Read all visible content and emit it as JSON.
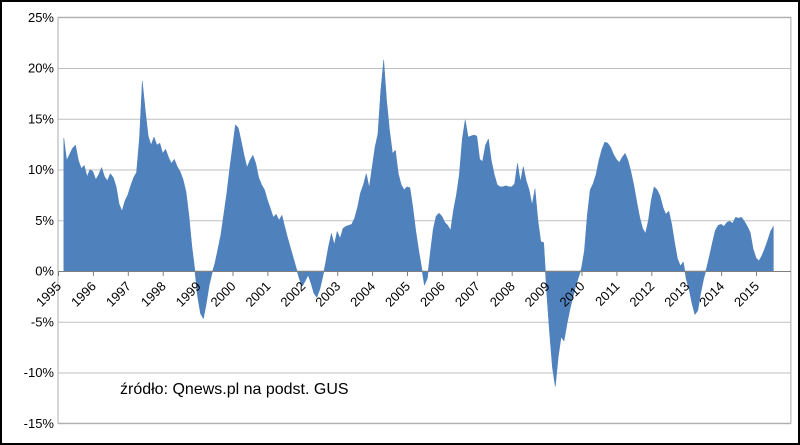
{
  "chart_data": {
    "type": "area",
    "title": "",
    "xlabel": "",
    "ylabel": "",
    "source": "źródło: Qnews.pl na podst. GUS",
    "ylim": [
      -15,
      25
    ],
    "xlim": [
      1995,
      2016
    ],
    "grid": "horizontal",
    "legend": "none",
    "frequency": "monthly",
    "start": "1995-03",
    "end": "2015-07",
    "y_ticks": [
      {
        "label": "25%",
        "value": 25
      },
      {
        "label": "20%",
        "value": 20
      },
      {
        "label": "15%",
        "value": 15
      },
      {
        "label": "10%",
        "value": 10
      },
      {
        "label": "5%",
        "value": 5
      },
      {
        "label": "0%",
        "value": 0
      },
      {
        "label": "-5%",
        "value": -5
      },
      {
        "label": "-10%",
        "value": -10
      },
      {
        "label": "-15%",
        "value": -15
      }
    ],
    "x_ticks": [
      1995,
      1996,
      1997,
      1998,
      1999,
      2000,
      2001,
      2002,
      2003,
      2004,
      2005,
      2006,
      2007,
      2008,
      2009,
      2010,
      2011,
      2012,
      2013,
      2014,
      2015
    ],
    "values_by_year": {
      "1995": [
        13.1,
        10.9,
        11.5,
        12.1,
        12.4,
        10.9,
        10.1,
        10.4,
        9.3,
        10.0
      ],
      "1996": [
        9.8,
        9.0,
        9.5,
        10.2,
        9.3,
        8.9,
        9.6,
        9.2,
        8.3,
        6.6,
        5.9,
        6.9
      ],
      "1997": [
        7.5,
        8.4,
        9.2,
        9.7,
        13.0,
        18.7,
        15.8,
        13.3,
        12.4,
        13.2,
        12.4,
        12.6
      ],
      "1998": [
        11.6,
        12.0,
        11.2,
        10.6,
        11.0,
        10.3,
        9.8,
        9.0,
        7.8,
        5.5,
        2.5,
        0.2
      ],
      "1999": [
        -2.5,
        -4.2,
        -4.7,
        -3.2,
        -1.4,
        -0.2,
        0.8,
        2.2,
        3.6,
        5.6,
        7.6,
        10.0
      ],
      "2000": [
        12.2,
        14.4,
        14.1,
        12.8,
        11.4,
        10.2,
        10.9,
        11.4,
        10.6,
        9.2,
        8.5,
        8.0
      ],
      "2001": [
        7.0,
        6.2,
        5.3,
        5.6,
        5.0,
        5.5,
        4.3,
        3.2,
        2.2,
        1.2,
        0.2,
        -0.8
      ],
      "2002": [
        -1.5,
        -1.0,
        -0.4,
        -1.2,
        -2.2,
        -2.6,
        -1.8,
        -0.6,
        0.8,
        2.4,
        3.7,
        2.6
      ],
      "2003": [
        3.9,
        3.2,
        4.2,
        4.4,
        4.5,
        4.6,
        5.2,
        6.3,
        7.7,
        8.5,
        9.6,
        8.2
      ],
      "2004": [
        10.2,
        12.2,
        13.5,
        17.8,
        20.8,
        16.8,
        13.8,
        11.6,
        11.9,
        9.6,
        8.5,
        8.0
      ],
      "2005": [
        8.3,
        8.2,
        6.3,
        4.0,
        2.1,
        0.4,
        -1.4,
        -0.7,
        1.8,
        4.1,
        5.4,
        5.7
      ],
      "2006": [
        5.4,
        4.8,
        4.5,
        4.0,
        6.0,
        7.5,
        9.5,
        13.0,
        14.9,
        13.2,
        13.3,
        13.4
      ],
      "2007": [
        13.3,
        11.0,
        10.8,
        12.4,
        13.0,
        10.9,
        9.5,
        8.5,
        8.3,
        8.3,
        8.4,
        8.3
      ],
      "2008": [
        8.3,
        8.6,
        10.6,
        8.8,
        10.3,
        8.9,
        8.0,
        6.5,
        8.1,
        5.0,
        2.9,
        2.8
      ],
      "2009": [
        -2.0,
        -6.0,
        -9.5,
        -11.4,
        -8.5,
        -6.5,
        -6.9,
        -5.2,
        -3.8,
        -2.6,
        -1.5,
        -0.6
      ],
      "2010": [
        0.3,
        2.0,
        5.5,
        8.0,
        8.6,
        9.5,
        10.9,
        12.0,
        12.7,
        12.6,
        12.2,
        11.5
      ],
      "2011": [
        11.0,
        10.7,
        11.2,
        11.6,
        10.9,
        9.8,
        8.4,
        6.8,
        5.3,
        4.2,
        3.7,
        5.0
      ],
      "2012": [
        7.0,
        8.3,
        8.0,
        7.4,
        6.3,
        5.6,
        5.9,
        4.6,
        2.8,
        1.2,
        0.5,
        0.9
      ],
      "2013": [
        -0.8,
        -1.8,
        -3.2,
        -4.3,
        -3.9,
        -2.2,
        -0.8,
        0.3,
        1.5,
        2.8,
        4.0,
        4.5
      ],
      "2014": [
        4.6,
        4.4,
        4.8,
        4.9,
        4.7,
        5.3,
        5.2,
        5.3,
        4.9,
        4.4,
        3.8,
        2.2
      ],
      "2015": [
        1.3,
        1.0,
        1.5,
        2.2,
        3.0,
        3.9,
        4.4
      ]
    },
    "colors": {
      "area_fill": "#4F81BD",
      "gridline": "#BFBFBF",
      "plot_border": "#ACACAC",
      "axis_line": "#7F7F7F",
      "text": "#000000",
      "background": "#FFFFFF",
      "outer_border": "#000000"
    }
  }
}
